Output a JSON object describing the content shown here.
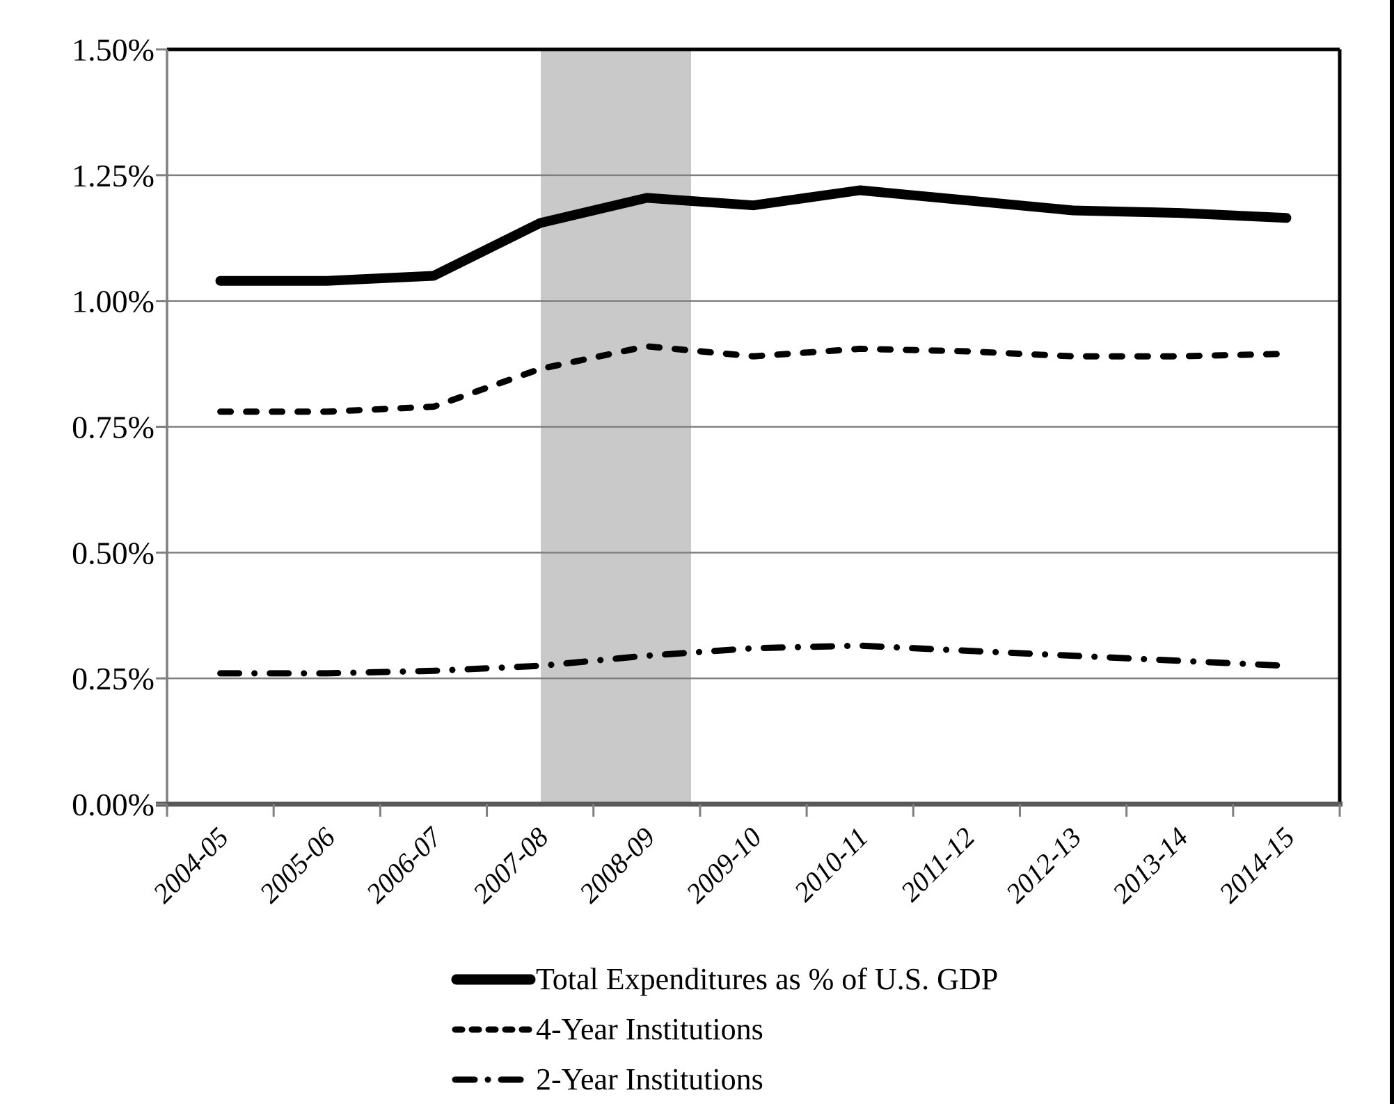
{
  "chart_data": {
    "type": "line",
    "categories": [
      "2004-05",
      "2005-06",
      "2006-07",
      "2007-08",
      "2008-09",
      "2009-10",
      "2010-11",
      "2011-12",
      "2012-13",
      "2013-14",
      "2014-15"
    ],
    "series": [
      {
        "name": "Total Expenditures as % of U.S. GDP",
        "line_style": "solid",
        "values": [
          1.04,
          1.04,
          1.05,
          1.155,
          1.205,
          1.19,
          1.22,
          1.2,
          1.18,
          1.175,
          1.165
        ]
      },
      {
        "name": "4-Year Institutions",
        "line_style": "dashed",
        "values": [
          0.78,
          0.78,
          0.79,
          0.865,
          0.91,
          0.89,
          0.905,
          0.9,
          0.89,
          0.89,
          0.895
        ]
      },
      {
        "name": "2-Year Institutions",
        "line_style": "dash-dot",
        "values": [
          0.26,
          0.26,
          0.265,
          0.275,
          0.295,
          0.31,
          0.315,
          0.305,
          0.295,
          0.285,
          0.275
        ]
      }
    ],
    "ylim": [
      0,
      1.5
    ],
    "y_tick_step": 0.25,
    "y_tick_labels": [
      "1.50%",
      "1.25%",
      "1.00%",
      "0.75%",
      "0.50%",
      "0.25%",
      "0.00%"
    ],
    "x_tick_label_rotation_deg": 45,
    "grid": "horizontal",
    "legend_position": "bottom",
    "recession_band": {
      "from_frac": 0.3187,
      "to_frac": 0.4469
    },
    "colors": {
      "series": "#000000",
      "gridline": "#7f7f7f",
      "axis": "#7f7f7f",
      "baseline": "#595959",
      "plot_border": "#000000",
      "recession_band": "#c9c9c9",
      "figure_border": "#000000",
      "background": "#ffffff"
    }
  },
  "legend": {
    "entries": [
      {
        "label": "Total Expenditures as % of U.S. GDP"
      },
      {
        "label": "4-Year Institutions"
      },
      {
        "label": "2-Year Institutions"
      }
    ]
  }
}
